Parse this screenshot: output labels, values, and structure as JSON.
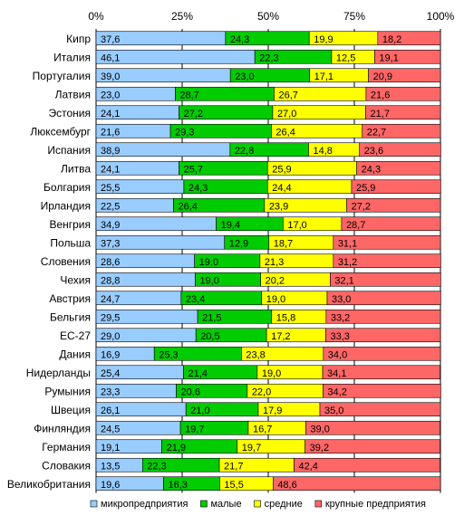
{
  "colors": {
    "micro": "#99ccff",
    "small": "#00cc00",
    "medium": "#ffff00",
    "large": "#ff6666"
  },
  "chart_data": {
    "type": "bar",
    "orientation": "horizontal",
    "stacked": "percent",
    "xlim": [
      0,
      100
    ],
    "x_ticks": [
      "0%",
      "25%",
      "50%",
      "75%",
      "100%"
    ],
    "x_tick_values": [
      0,
      25,
      50,
      75,
      100
    ],
    "grid": true,
    "legend_position": "bottom",
    "categories": [
      "Кипр",
      "Италия",
      "Португалия",
      "Латвия",
      "Эстония",
      "Люксембург",
      "Испания",
      "Литва",
      "Болгария",
      "Ирландия",
      "Венгрия",
      "Польша",
      "Словения",
      "Чехия",
      "Австрия",
      "Бельгия",
      "ЕС-27",
      "Дания",
      "Нидерланды",
      "Румыния",
      "Швеция",
      "Финляндия",
      "Германия",
      "Словакия",
      "Великобритания"
    ],
    "series": [
      {
        "name": "микропредприятия",
        "color_key": "micro",
        "values": [
          37.6,
          46.1,
          39.0,
          23.0,
          24.1,
          21.6,
          38.9,
          24.1,
          25.5,
          22.5,
          34.9,
          37.3,
          28.6,
          28.8,
          24.7,
          29.5,
          29.0,
          16.9,
          25.4,
          23.3,
          26.1,
          24.5,
          19.1,
          13.5,
          19.6
        ]
      },
      {
        "name": "малые",
        "color_key": "small",
        "values": [
          24.3,
          22.3,
          23.0,
          28.7,
          27.2,
          29.3,
          22.8,
          25.7,
          24.3,
          26.4,
          19.4,
          12.9,
          19.0,
          19.0,
          23.4,
          21.5,
          20.5,
          25.3,
          21.4,
          20.6,
          21.0,
          19.7,
          21.9,
          22.3,
          16.3
        ]
      },
      {
        "name": "средние",
        "color_key": "medium",
        "values": [
          19.9,
          12.5,
          17.1,
          26.7,
          27.0,
          26.4,
          14.8,
          25.9,
          24.4,
          23.9,
          17.0,
          18.7,
          21.3,
          20.2,
          19.0,
          15.8,
          17.2,
          23.8,
          19.0,
          22.0,
          17.9,
          16.7,
          19.7,
          21.7,
          15.5
        ]
      },
      {
        "name": "крупные предприятия",
        "color_key": "large",
        "values": [
          18.2,
          19.1,
          20.9,
          21.6,
          21.7,
          22.7,
          23.6,
          24.3,
          25.9,
          27.2,
          28.7,
          31.1,
          31.2,
          32.1,
          33.0,
          33.2,
          33.3,
          34.0,
          34.1,
          34.2,
          35.0,
          39.0,
          39.2,
          42.4,
          48.6
        ]
      }
    ]
  }
}
